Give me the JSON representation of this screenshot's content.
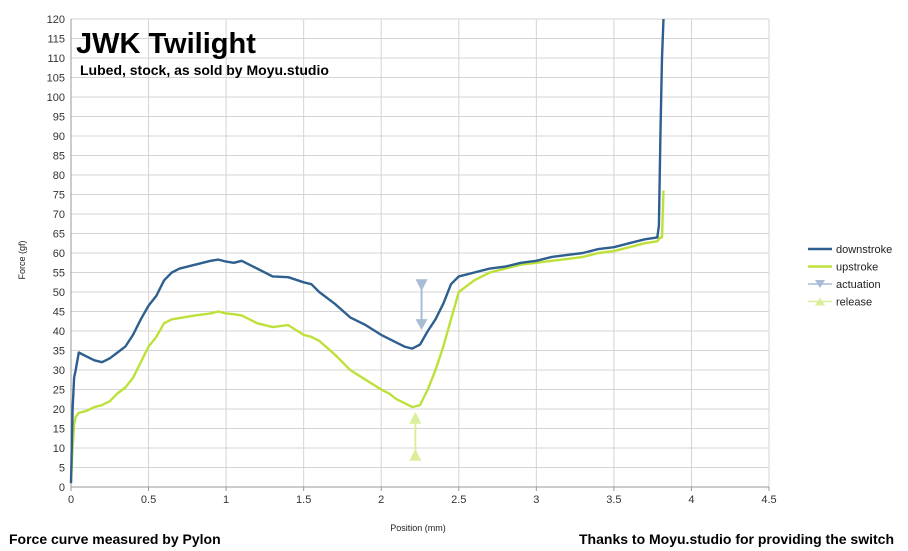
{
  "chart_data": {
    "type": "line",
    "title": "JWK Twilight",
    "subtitle": "Lubed, stock, as sold by Moyu.studio",
    "xlabel": "Position (mm)",
    "ylabel": "Force (gf)",
    "xlim": [
      0,
      4.5
    ],
    "ylim": [
      0,
      120
    ],
    "xticks": [
      "0",
      "0.5",
      "1",
      "1.5",
      "2",
      "2.5",
      "3",
      "3.5",
      "4",
      "4.5"
    ],
    "yticks": [
      "0",
      "5",
      "10",
      "15",
      "20",
      "25",
      "30",
      "35",
      "40",
      "45",
      "50",
      "55",
      "60",
      "65",
      "70",
      "75",
      "80",
      "85",
      "90",
      "95",
      "100",
      "105",
      "110",
      "115",
      "120"
    ],
    "grid": true,
    "legend_position": "right",
    "series": [
      {
        "name": "downstroke",
        "color": "#2e5f8f",
        "x": [
          0,
          0.01,
          0.02,
          0.03,
          0.05,
          0.1,
          0.15,
          0.2,
          0.25,
          0.3,
          0.35,
          0.4,
          0.45,
          0.5,
          0.55,
          0.6,
          0.65,
          0.7,
          0.8,
          0.9,
          0.95,
          1.0,
          1.05,
          1.1,
          1.15,
          1.2,
          1.3,
          1.4,
          1.5,
          1.55,
          1.6,
          1.7,
          1.8,
          1.9,
          2.0,
          2.05,
          2.1,
          2.15,
          2.2,
          2.25,
          2.3,
          2.35,
          2.4,
          2.45,
          2.5,
          2.6,
          2.7,
          2.8,
          2.9,
          3.0,
          3.1,
          3.2,
          3.3,
          3.4,
          3.5,
          3.6,
          3.7,
          3.78,
          3.79,
          3.8,
          3.81,
          3.82
        ],
        "y": [
          1,
          20,
          28,
          30,
          34.5,
          33.5,
          32.5,
          32,
          33,
          34.5,
          36,
          39,
          43,
          46.5,
          49,
          53,
          55,
          56,
          57,
          58,
          58.3,
          57.8,
          57.5,
          58,
          57,
          56,
          54,
          53.8,
          52.5,
          52,
          50,
          47,
          43.5,
          41.5,
          39,
          38,
          37,
          36,
          35.5,
          36.5,
          40,
          43,
          47,
          52,
          54,
          55,
          56,
          56.5,
          57.5,
          58,
          59,
          59.5,
          60,
          61,
          61.5,
          62.5,
          63.5,
          64,
          67,
          90,
          110,
          120
        ]
      },
      {
        "name": "upstroke",
        "color": "#bde13b",
        "x": [
          0,
          0.01,
          0.02,
          0.03,
          0.05,
          0.1,
          0.15,
          0.2,
          0.25,
          0.3,
          0.35,
          0.4,
          0.45,
          0.5,
          0.55,
          0.6,
          0.65,
          0.7,
          0.8,
          0.9,
          0.95,
          1.0,
          1.05,
          1.1,
          1.15,
          1.2,
          1.3,
          1.4,
          1.5,
          1.55,
          1.6,
          1.7,
          1.8,
          1.9,
          2.0,
          2.05,
          2.1,
          2.15,
          2.2,
          2.25,
          2.3,
          2.35,
          2.4,
          2.45,
          2.5,
          2.6,
          2.7,
          2.8,
          2.9,
          3.0,
          3.1,
          3.2,
          3.3,
          3.4,
          3.5,
          3.6,
          3.7,
          3.78,
          3.79,
          3.8,
          3.81,
          3.82
        ],
        "y": [
          1,
          10,
          16,
          18,
          19,
          19.5,
          20.5,
          21,
          22,
          24,
          25.5,
          28,
          32,
          36,
          38.5,
          42,
          43,
          43.3,
          44,
          44.5,
          45,
          44.5,
          44.3,
          44,
          43,
          42,
          41,
          41.5,
          39,
          38.5,
          37.5,
          34,
          30,
          27.5,
          25,
          24,
          22.5,
          21.5,
          20.5,
          21,
          25,
          30,
          36,
          43,
          50,
          53,
          55,
          56,
          57,
          57.5,
          58,
          58.5,
          59,
          60,
          60.5,
          61.5,
          62.5,
          63,
          63.5,
          64,
          64,
          76
        ]
      },
      {
        "name": "actuation",
        "color": "#a9bcd6",
        "x": [
          2.26,
          2.26
        ],
        "y": [
          52,
          41
        ]
      },
      {
        "name": "release",
        "color": "#dbef9b",
        "x": [
          2.22,
          2.22
        ],
        "y": [
          18,
          8
        ]
      }
    ]
  },
  "footer": {
    "left": "Force curve measured by Pylon",
    "right": "Thanks to Moyu.studio for providing the switch"
  }
}
